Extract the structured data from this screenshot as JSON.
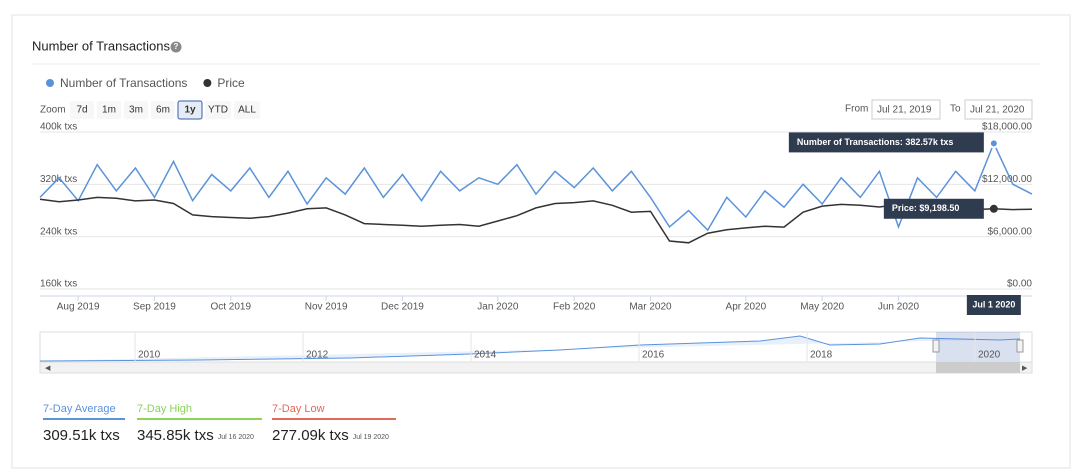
{
  "chart_data": {
    "type": "line",
    "title": "Number of Transactions",
    "categories": [
      null,
      null,
      "Aug 2019",
      null,
      null,
      null,
      "Sep 2019",
      null,
      null,
      null,
      "Oct 2019",
      null,
      null,
      null,
      null,
      "Nov 2019",
      null,
      null,
      null,
      "Dec 2019",
      null,
      null,
      null,
      null,
      "Jan 2020",
      null,
      null,
      null,
      "Feb 2020",
      null,
      null,
      null,
      "Mar 2020",
      null,
      null,
      null,
      null,
      "Apr 2020",
      null,
      null,
      null,
      "May 2020",
      null,
      null,
      null,
      "Jun 2020",
      null,
      null,
      null,
      null,
      null,
      null,
      null
    ],
    "series": [
      {
        "name": "Number of Transactions",
        "color": "#5b93db",
        "values": [
          300000,
          330000,
          295000,
          350000,
          310000,
          345000,
          300000,
          355000,
          295000,
          335000,
          310000,
          345000,
          300000,
          340000,
          290000,
          330000,
          305000,
          345000,
          300000,
          335000,
          295000,
          340000,
          310000,
          330000,
          320000,
          350000,
          305000,
          340000,
          315000,
          345000,
          310000,
          340000,
          300000,
          255000,
          280000,
          250000,
          300000,
          270000,
          310000,
          285000,
          320000,
          290000,
          330000,
          300000,
          340000,
          255000,
          330000,
          300000,
          340000,
          310000,
          382570,
          320000,
          305000
        ]
      },
      {
        "name": "Price",
        "color": "#333333",
        "axis": "y2",
        "values": [
          10300,
          10000,
          10200,
          10500,
          10400,
          10100,
          10200,
          9800,
          8500,
          8300,
          8200,
          8100,
          8300,
          8700,
          9200,
          9300,
          8500,
          7500,
          7400,
          7300,
          7200,
          7300,
          7400,
          7200,
          7800,
          8400,
          9300,
          9800,
          9900,
          10100,
          9600,
          8800,
          8900,
          5500,
          5300,
          6400,
          6800,
          7000,
          7200,
          7100,
          8800,
          9500,
          9700,
          9600,
          9400,
          9700,
          9500,
          9200,
          9300,
          9100,
          9198.5,
          9100,
          9150
        ]
      }
    ],
    "ylim": [
      160000,
      400000
    ],
    "yticks": [
      {
        "value": 160000,
        "label": "160k txs"
      },
      {
        "value": 240000,
        "label": "240k txs"
      },
      {
        "value": 320000,
        "label": "320k txs"
      },
      {
        "value": 400000,
        "label": "400k txs"
      }
    ],
    "y2lim": [
      0,
      18000
    ],
    "y2ticks": [
      {
        "value": 0,
        "label": "$0.00"
      },
      {
        "value": 6000,
        "label": "$6,000.00"
      },
      {
        "value": 12000,
        "label": "$12,000.00"
      },
      {
        "value": 18000,
        "label": "$18,000.00"
      }
    ],
    "grid": true,
    "annotations": [
      "Number of Transactions: 382.57k txs",
      "Price: $9,198.50",
      "Jul 1 2020"
    ]
  },
  "ui": {
    "zoom_label": "Zoom",
    "zoom_buttons": [
      "7d",
      "1m",
      "3m",
      "6m",
      "1y",
      "YTD",
      "ALL"
    ],
    "from_label": "From",
    "from": "Jul 21, 2019",
    "to_label": "To",
    "to": "Jul 21, 2020",
    "navigator_years": [
      "2010",
      "2012",
      "2014",
      "2016",
      "2018",
      "2020"
    ],
    "stats": [
      {
        "label": "7-Day Average",
        "value": "309.51k txs"
      },
      {
        "label": "7-Day High",
        "value": "345.85k txs",
        "date": "Jul 16 2020"
      },
      {
        "label": "7-Day Low",
        "value": "277.09k txs",
        "date": "Jul 19 2020"
      }
    ]
  }
}
